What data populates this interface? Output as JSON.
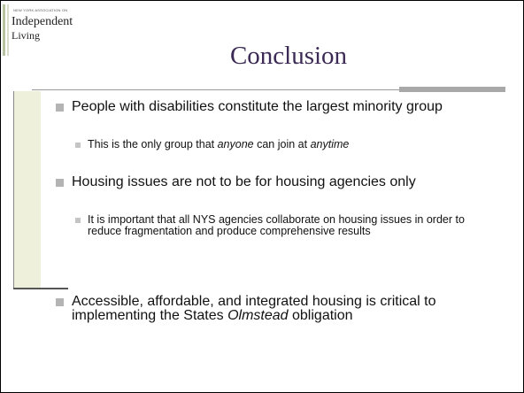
{
  "logo": {
    "small": "NEW YORK ASSOCIATION ON",
    "line1": "Independent",
    "line2": "Living"
  },
  "title": "Conclusion",
  "bullets": [
    {
      "text": [
        "People with disabilities constitute the largest minority group"
      ],
      "sub": [
        [
          "This is the only group that ",
          "anyone",
          " can join at ",
          "anytime"
        ]
      ]
    },
    {
      "text": [
        "Housing issues are not to be for housing agencies only"
      ],
      "sub": [
        [
          "It is important that all NYS agencies collaborate on housing issues in order to reduce fragmentation and produce comprehensive results"
        ]
      ]
    },
    {
      "text": [
        "Accessible, affordable, and integrated housing is critical to implementing the States ",
        "Olmstead",
        " obligation"
      ],
      "sub": []
    }
  ]
}
